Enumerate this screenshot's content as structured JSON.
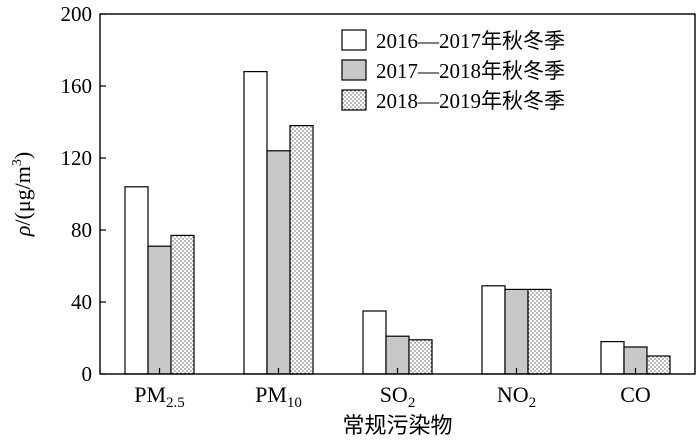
{
  "chart_data": {
    "type": "bar",
    "xlabel": "常规污染物",
    "ylabel": "ρ/(μg/m3)",
    "ylabel_parts": {
      "symbol": "ρ",
      "unit": "/(μg/m",
      "exp": "3",
      "close": ")"
    },
    "ylim": [
      0,
      200
    ],
    "yticks": [
      0,
      40,
      80,
      120,
      160,
      200
    ],
    "categories": [
      {
        "base": "PM",
        "sub": "2.5"
      },
      {
        "base": "PM",
        "sub": "10"
      },
      {
        "base": "SO",
        "sub": "2"
      },
      {
        "base": "NO",
        "sub": "2"
      },
      {
        "base": "CO",
        "sub": ""
      }
    ],
    "series": [
      {
        "name": "2016—2017年秋冬季",
        "fill": "#ffffff",
        "pattern": "none",
        "values": [
          104,
          168,
          35,
          49,
          18
        ]
      },
      {
        "name": "2017—2018年秋冬季",
        "fill": "#c8c8c8",
        "pattern": "none",
        "values": [
          71,
          124,
          21,
          47,
          15
        ]
      },
      {
        "name": "2018—2019年秋冬季",
        "fill": "#ffffff",
        "pattern": "dots",
        "values": [
          77,
          138,
          19,
          47,
          10
        ]
      }
    ],
    "legend_position": "top-right",
    "grid": false
  }
}
